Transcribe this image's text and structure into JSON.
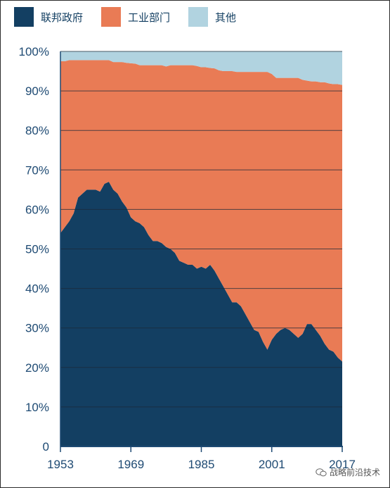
{
  "legend": [
    {
      "label": "联邦政府",
      "color": "#133f62"
    },
    {
      "label": "工业部门",
      "color": "#e97b55"
    },
    {
      "label": "其他",
      "color": "#b1d3e0"
    }
  ],
  "watermark": {
    "text": "战略前沿技术",
    "icon": "wechat-icon"
  },
  "chart_data": {
    "type": "area",
    "stacked": true,
    "title": "",
    "xlabel": "",
    "ylabel": "",
    "ylim": [
      0,
      100
    ],
    "xlim": [
      1953,
      2017
    ],
    "x_ticks": [
      "1953",
      "1969",
      "1985",
      "2001",
      "2017"
    ],
    "y_ticks": [
      "0",
      "10%",
      "20%",
      "30%",
      "40%",
      "50%",
      "60%",
      "70%",
      "80%",
      "90%",
      "100%"
    ],
    "grid": true,
    "legend_position": "top-left",
    "x": [
      1953,
      1954,
      1955,
      1956,
      1957,
      1958,
      1959,
      1960,
      1961,
      1962,
      1963,
      1964,
      1965,
      1966,
      1967,
      1968,
      1969,
      1970,
      1971,
      1972,
      1973,
      1974,
      1975,
      1976,
      1977,
      1978,
      1979,
      1980,
      1981,
      1982,
      1983,
      1984,
      1985,
      1986,
      1987,
      1988,
      1989,
      1990,
      1991,
      1992,
      1993,
      1994,
      1995,
      1996,
      1997,
      1998,
      1999,
      2000,
      2001,
      2002,
      2003,
      2004,
      2005,
      2006,
      2007,
      2008,
      2009,
      2010,
      2011,
      2012,
      2013,
      2014,
      2015,
      2016,
      2017
    ],
    "series": [
      {
        "name": "联邦政府",
        "color": "#133f62",
        "values": [
          54,
          55.5,
          57,
          59,
          63,
          64,
          65,
          65,
          65,
          64.5,
          66.5,
          67,
          65,
          64,
          62,
          60.5,
          58,
          57,
          56.5,
          55.5,
          53.5,
          52,
          52,
          51.5,
          50.5,
          50,
          49,
          47,
          46.5,
          46,
          46,
          45,
          45.5,
          45,
          46,
          44.5,
          42.5,
          40.5,
          38.5,
          36.5,
          36.5,
          35.5,
          33.5,
          31.5,
          29.5,
          29,
          26.5,
          24.5,
          27,
          28.5,
          29.5,
          30,
          29.5,
          28.5,
          27.5,
          28.5,
          31,
          31,
          29.5,
          28,
          26,
          24.5,
          24,
          22.5,
          21.5
        ]
      },
      {
        "name": "工业部门",
        "color": "#e97b55",
        "values": [
          43.5,
          42,
          40.8,
          38.8,
          34.8,
          33.8,
          32.8,
          32.8,
          32.8,
          33.3,
          31.3,
          30.8,
          32.3,
          33.3,
          35.3,
          36.6,
          39,
          39.9,
          40,
          41,
          43,
          44.5,
          44.5,
          45,
          45.7,
          46.5,
          47.5,
          49.5,
          50,
          50.5,
          50.5,
          51.3,
          50.5,
          51,
          49.8,
          51.2,
          52.7,
          54.5,
          56.5,
          58.5,
          58.3,
          59.3,
          61.3,
          63.3,
          65.3,
          65.8,
          68.3,
          70.3,
          67.3,
          64.8,
          63.8,
          63.3,
          63.8,
          64.8,
          65.8,
          64.3,
          61.6,
          61.4,
          62.9,
          64.2,
          66.2,
          67.4,
          67.7,
          69.2,
          70
        ]
      },
      {
        "name": "其他",
        "color": "#b1d3e0",
        "values": [
          2.5,
          2.5,
          2.2,
          2.2,
          2.2,
          2.2,
          2.2,
          2.2,
          2.2,
          2.2,
          2.2,
          2.2,
          2.7,
          2.7,
          2.7,
          2.9,
          3,
          3.1,
          3.5,
          3.5,
          3.5,
          3.5,
          3.5,
          3.5,
          3.8,
          3.5,
          3.5,
          3.5,
          3.5,
          3.5,
          3.5,
          3.7,
          4,
          4,
          4.2,
          4.3,
          4.8,
          5,
          5,
          5,
          5.2,
          5.2,
          5.2,
          5.2,
          5.2,
          5.2,
          5.2,
          5.2,
          5.7,
          6.7,
          6.7,
          6.7,
          6.7,
          6.7,
          6.7,
          7.2,
          7.4,
          7.6,
          7.6,
          7.8,
          7.8,
          8.1,
          8.3,
          8.3,
          8.5
        ]
      }
    ]
  }
}
